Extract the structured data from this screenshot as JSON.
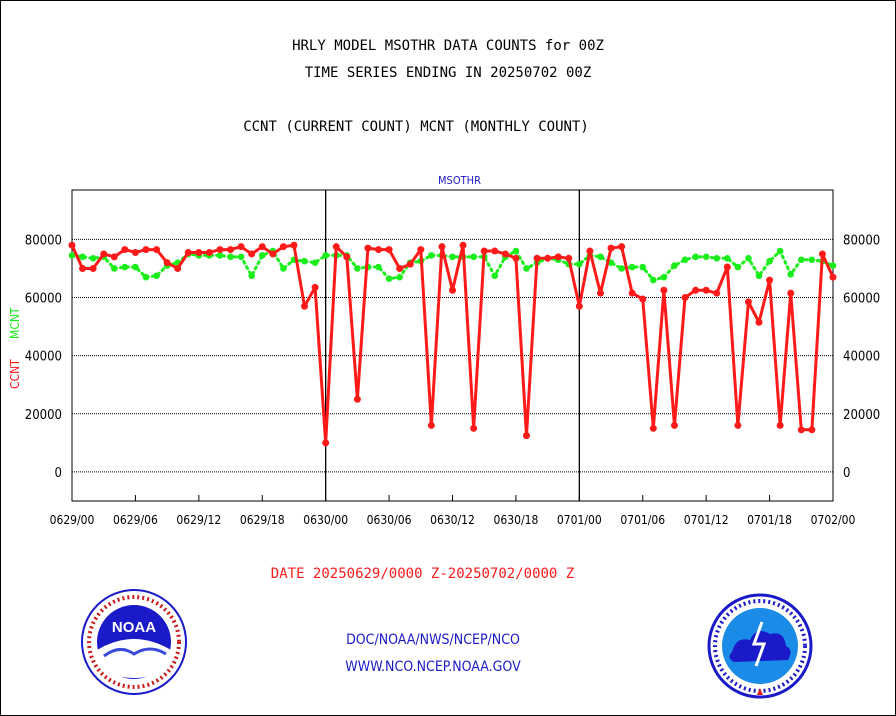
{
  "header": {
    "title_line1": "HRLY MODEL MSOTHR DATA COUNTS for 00Z",
    "title_line2": "TIME SERIES ENDING IN 20250702 00Z",
    "title_line3": "CCNT (CURRENT COUNT) MCNT (MONTHLY COUNT)"
  },
  "footer": {
    "agency": "DOC/NOAA/NWS/NCEP/NCO",
    "website": "WWW.NCO.NCEP.NOAA.GOV"
  },
  "logos": {
    "left": {
      "icon": "noaa-logo",
      "text": "NOAA",
      "ring_text": "NATIONAL OCEANIC AND ATMOSPHERIC ADMINISTRATION - U.S. DEPARTMENT OF COMMERCE"
    },
    "right": {
      "icon": "national-weather-service-logo",
      "ring_text": "NATIONAL WEATHER SERVICE"
    }
  },
  "chart_data": {
    "type": "line",
    "title": "MSOTHR",
    "xlabel": "DATE 20250629/0000 Z-20250702/0000 Z",
    "ylabel_ccnt": "CCNT",
    "ylabel_mcnt": "MCNT",
    "x_ticks": [
      "0629/00",
      "0629/06",
      "0629/12",
      "0629/18",
      "0630/00",
      "0630/06",
      "0630/12",
      "0630/18",
      "0701/00",
      "0701/06",
      "0701/12",
      "0701/18",
      "0702/00"
    ],
    "y_ticks": [
      0,
      20000,
      40000,
      60000,
      80000
    ],
    "ylim": [
      -10000,
      97000
    ],
    "xlim_hours": [
      0,
      72
    ],
    "grid": true,
    "day_separators_hours": [
      24,
      48
    ],
    "colors": {
      "ccnt": "#ff1a1a",
      "mcnt": "#1aee1a",
      "title": "#1a1ac8",
      "xlabel": "#ff1a1a"
    },
    "series": [
      {
        "name": "CCNT",
        "style": "solid",
        "values": [
          78000,
          70000,
          70000,
          75000,
          74000,
          76500,
          75500,
          76500,
          76500,
          72000,
          70000,
          75500,
          75500,
          75500,
          76500,
          76500,
          77500,
          75000,
          77500,
          75000,
          77500,
          78000,
          57000,
          63500,
          10000,
          77500,
          74000,
          25000,
          77000,
          76500,
          76500,
          70000,
          71500,
          76500,
          16000,
          77500,
          62500,
          78000,
          15000,
          76000,
          76000,
          75000,
          73500,
          12500,
          73500,
          73500,
          74000,
          73500,
          57000,
          76000,
          61500,
          77000,
          77500,
          61500,
          59500,
          15000,
          62500,
          16000,
          60000,
          62500,
          62500,
          61500,
          70500,
          16000,
          58500,
          51500,
          66000,
          16000,
          61500,
          14500,
          14500,
          75000,
          67000
        ]
      },
      {
        "name": "MCNT",
        "style": "dotted",
        "values": [
          74500,
          74000,
          73500,
          74000,
          70000,
          70500,
          70500,
          67000,
          67500,
          71000,
          72000,
          75000,
          74500,
          74500,
          74500,
          74000,
          74000,
          67500,
          74500,
          76000,
          70000,
          73000,
          72500,
          72000,
          74500,
          74500,
          74500,
          70000,
          70500,
          70500,
          66500,
          67000,
          72000,
          72500,
          74500,
          74500,
          74000,
          74000,
          74000,
          74000,
          67500,
          74000,
          76000,
          70000,
          72000,
          73500,
          73000,
          71500,
          71500,
          74500,
          74000,
          72000,
          70000,
          70500,
          70500,
          66000,
          67000,
          71000,
          73000,
          74000,
          74000,
          73500,
          73500,
          70500,
          73500,
          67500,
          72500,
          76000,
          68000,
          73000,
          73000,
          72500,
          71000
        ]
      }
    ]
  }
}
